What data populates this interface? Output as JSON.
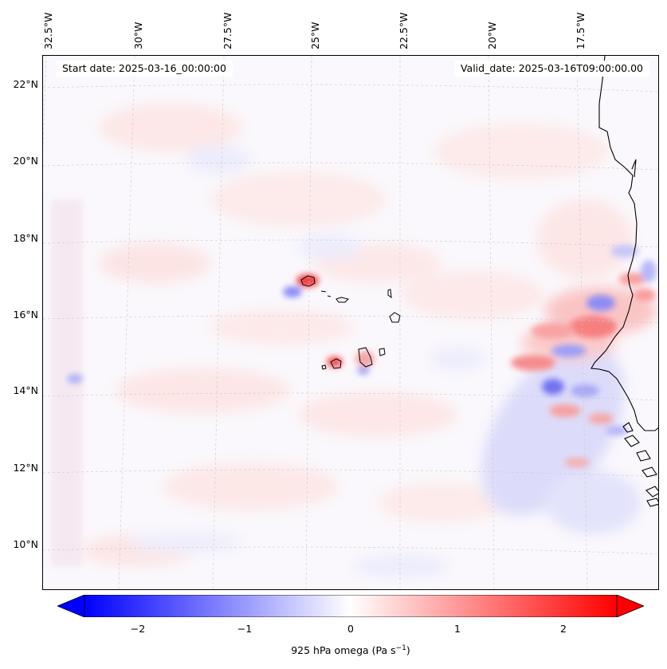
{
  "map": {
    "start_date": "Start date: 2025-03-16_00:00:00",
    "valid_date": "Valid_date: 2025-03-16T09:00:00.00",
    "longitude_labels": [
      "32.5°W",
      "30°W",
      "27.5°W",
      "25°W",
      "22.5°W",
      "20°W",
      "17.5°W"
    ],
    "latitude_labels": [
      "22°N",
      "20°N",
      "18°N",
      "16°N",
      "14°N",
      "12°N",
      "10°N"
    ],
    "field": "925 hPa omega",
    "colormap": "bwr",
    "colors": {
      "negative": "#0000ff",
      "zero": "#ffffff",
      "positive": "#ff0000",
      "coastline": "#000000",
      "gridline": "#c8c8c8"
    }
  },
  "colorbar": {
    "ticks": [
      "−2",
      "−1",
      "0",
      "1",
      "2"
    ],
    "tick_values": [
      -2,
      -1,
      0,
      1,
      2
    ],
    "range": [
      -2.75,
      2.75
    ],
    "extend": "both",
    "label_main": "925 hPa omega (Pa s",
    "label_sup": "−1",
    "label_end": ")"
  }
}
